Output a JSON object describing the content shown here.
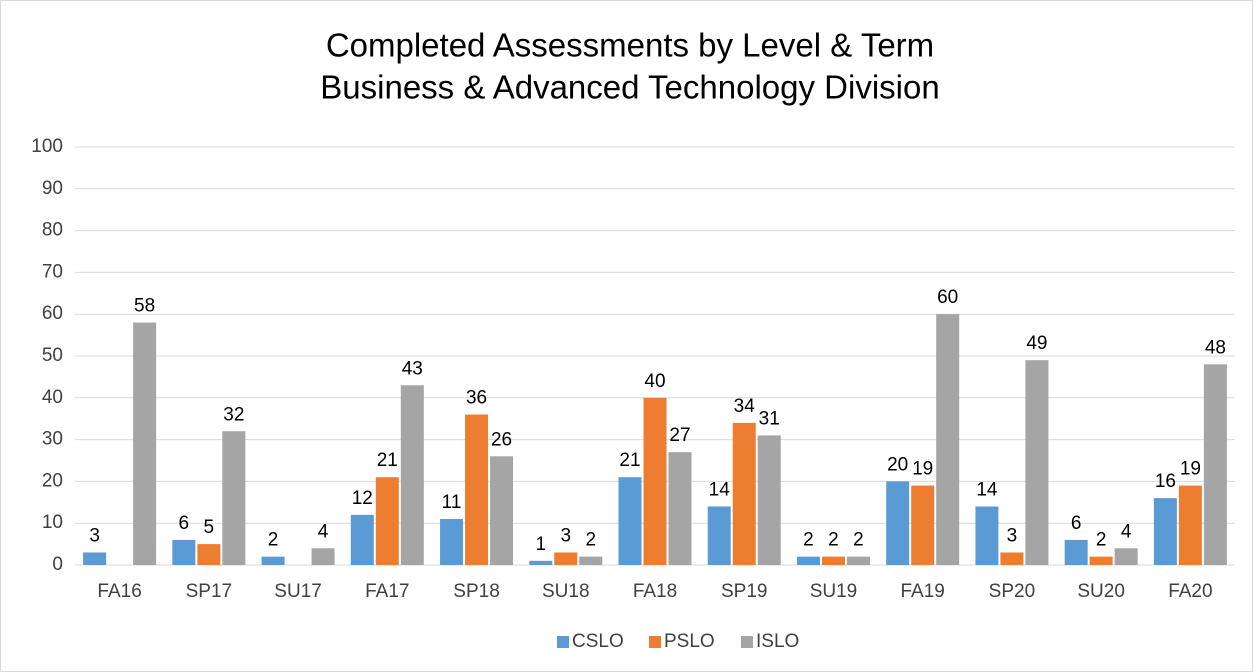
{
  "chart_data": {
    "type": "bar",
    "title": "Completed Assessments by Level & Term",
    "subtitle": "Business & Advanced Technology Division",
    "categories": [
      "FA16",
      "SP17",
      "SU17",
      "FA17",
      "SP18",
      "SU18",
      "FA18",
      "SP19",
      "SU19",
      "FA19",
      "SP20",
      "SU20",
      "FA20"
    ],
    "series": [
      {
        "name": "CSLO",
        "color": "#5b9bd5",
        "values": [
          3,
          6,
          2,
          12,
          11,
          1,
          21,
          14,
          2,
          20,
          14,
          6,
          16
        ]
      },
      {
        "name": "PSLO",
        "color": "#ed7d31",
        "values": [
          null,
          5,
          null,
          21,
          36,
          3,
          40,
          34,
          2,
          19,
          3,
          2,
          19
        ]
      },
      {
        "name": "ISLO",
        "color": "#a5a5a5",
        "values": [
          58,
          32,
          4,
          43,
          26,
          2,
          27,
          31,
          2,
          60,
          49,
          4,
          48
        ]
      }
    ],
    "ylim": [
      0,
      100
    ],
    "yticks": [
      0,
      10,
      20,
      30,
      40,
      50,
      60,
      70,
      80,
      90,
      100
    ],
    "grid": true,
    "legend": "bottom"
  }
}
